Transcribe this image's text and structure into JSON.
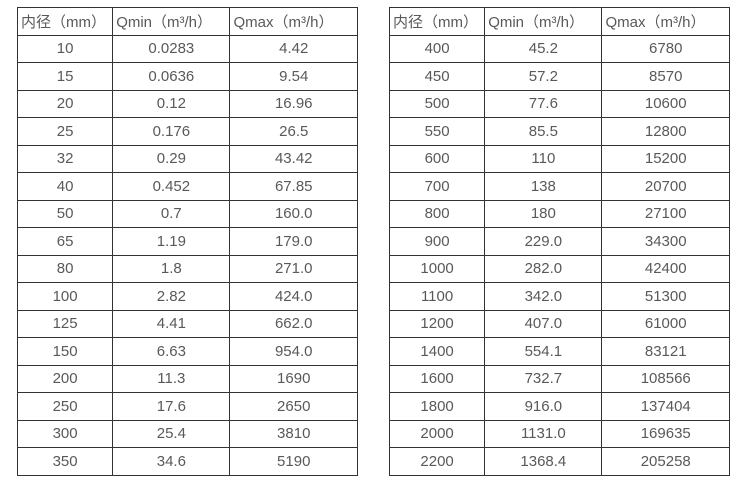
{
  "colors": {
    "border": "#333333",
    "text": "#595959",
    "background": "#ffffff"
  },
  "tables": [
    {
      "name": "small-diameter-flow-table",
      "headers": [
        "内径（mm）",
        "Qmin（m³/h）",
        "Qmax（m³/h）"
      ],
      "rows": [
        [
          "10",
          "0.0283",
          "4.42"
        ],
        [
          "15",
          "0.0636",
          "9.54"
        ],
        [
          "20",
          "0.12",
          "16.96"
        ],
        [
          "25",
          "0.176",
          "26.5"
        ],
        [
          "32",
          "0.29",
          "43.42"
        ],
        [
          "40",
          "0.452",
          "67.85"
        ],
        [
          "50",
          "0.7",
          "160.0"
        ],
        [
          "65",
          "1.19",
          "179.0"
        ],
        [
          "80",
          "1.8",
          "271.0"
        ],
        [
          "100",
          "2.82",
          "424.0"
        ],
        [
          "125",
          "4.41",
          "662.0"
        ],
        [
          "150",
          "6.63",
          "954.0"
        ],
        [
          "200",
          "11.3",
          "1690"
        ],
        [
          "250",
          "17.6",
          "2650"
        ],
        [
          "300",
          "25.4",
          "3810"
        ],
        [
          "350",
          "34.6",
          "5190"
        ]
      ]
    },
    {
      "name": "large-diameter-flow-table",
      "headers": [
        "内径（mm）",
        "Qmin（m³/h）",
        "Qmax（m³/h）"
      ],
      "rows": [
        [
          "400",
          "45.2",
          "6780"
        ],
        [
          "450",
          "57.2",
          "8570"
        ],
        [
          "500",
          "77.6",
          "10600"
        ],
        [
          "550",
          "85.5",
          "12800"
        ],
        [
          "600",
          "110",
          "15200"
        ],
        [
          "700",
          "138",
          "20700"
        ],
        [
          "800",
          "180",
          "27100"
        ],
        [
          "900",
          "229.0",
          "34300"
        ],
        [
          "1000",
          "282.0",
          "42400"
        ],
        [
          "1100",
          "342.0",
          "51300"
        ],
        [
          "1200",
          "407.0",
          "61000"
        ],
        [
          "1400",
          "554.1",
          "83121"
        ],
        [
          "1600",
          "732.7",
          "108566"
        ],
        [
          "1800",
          "916.0",
          "137404"
        ],
        [
          "2000",
          "1131.0",
          "169635"
        ],
        [
          "2200",
          "1368.4",
          "205258"
        ]
      ]
    }
  ]
}
